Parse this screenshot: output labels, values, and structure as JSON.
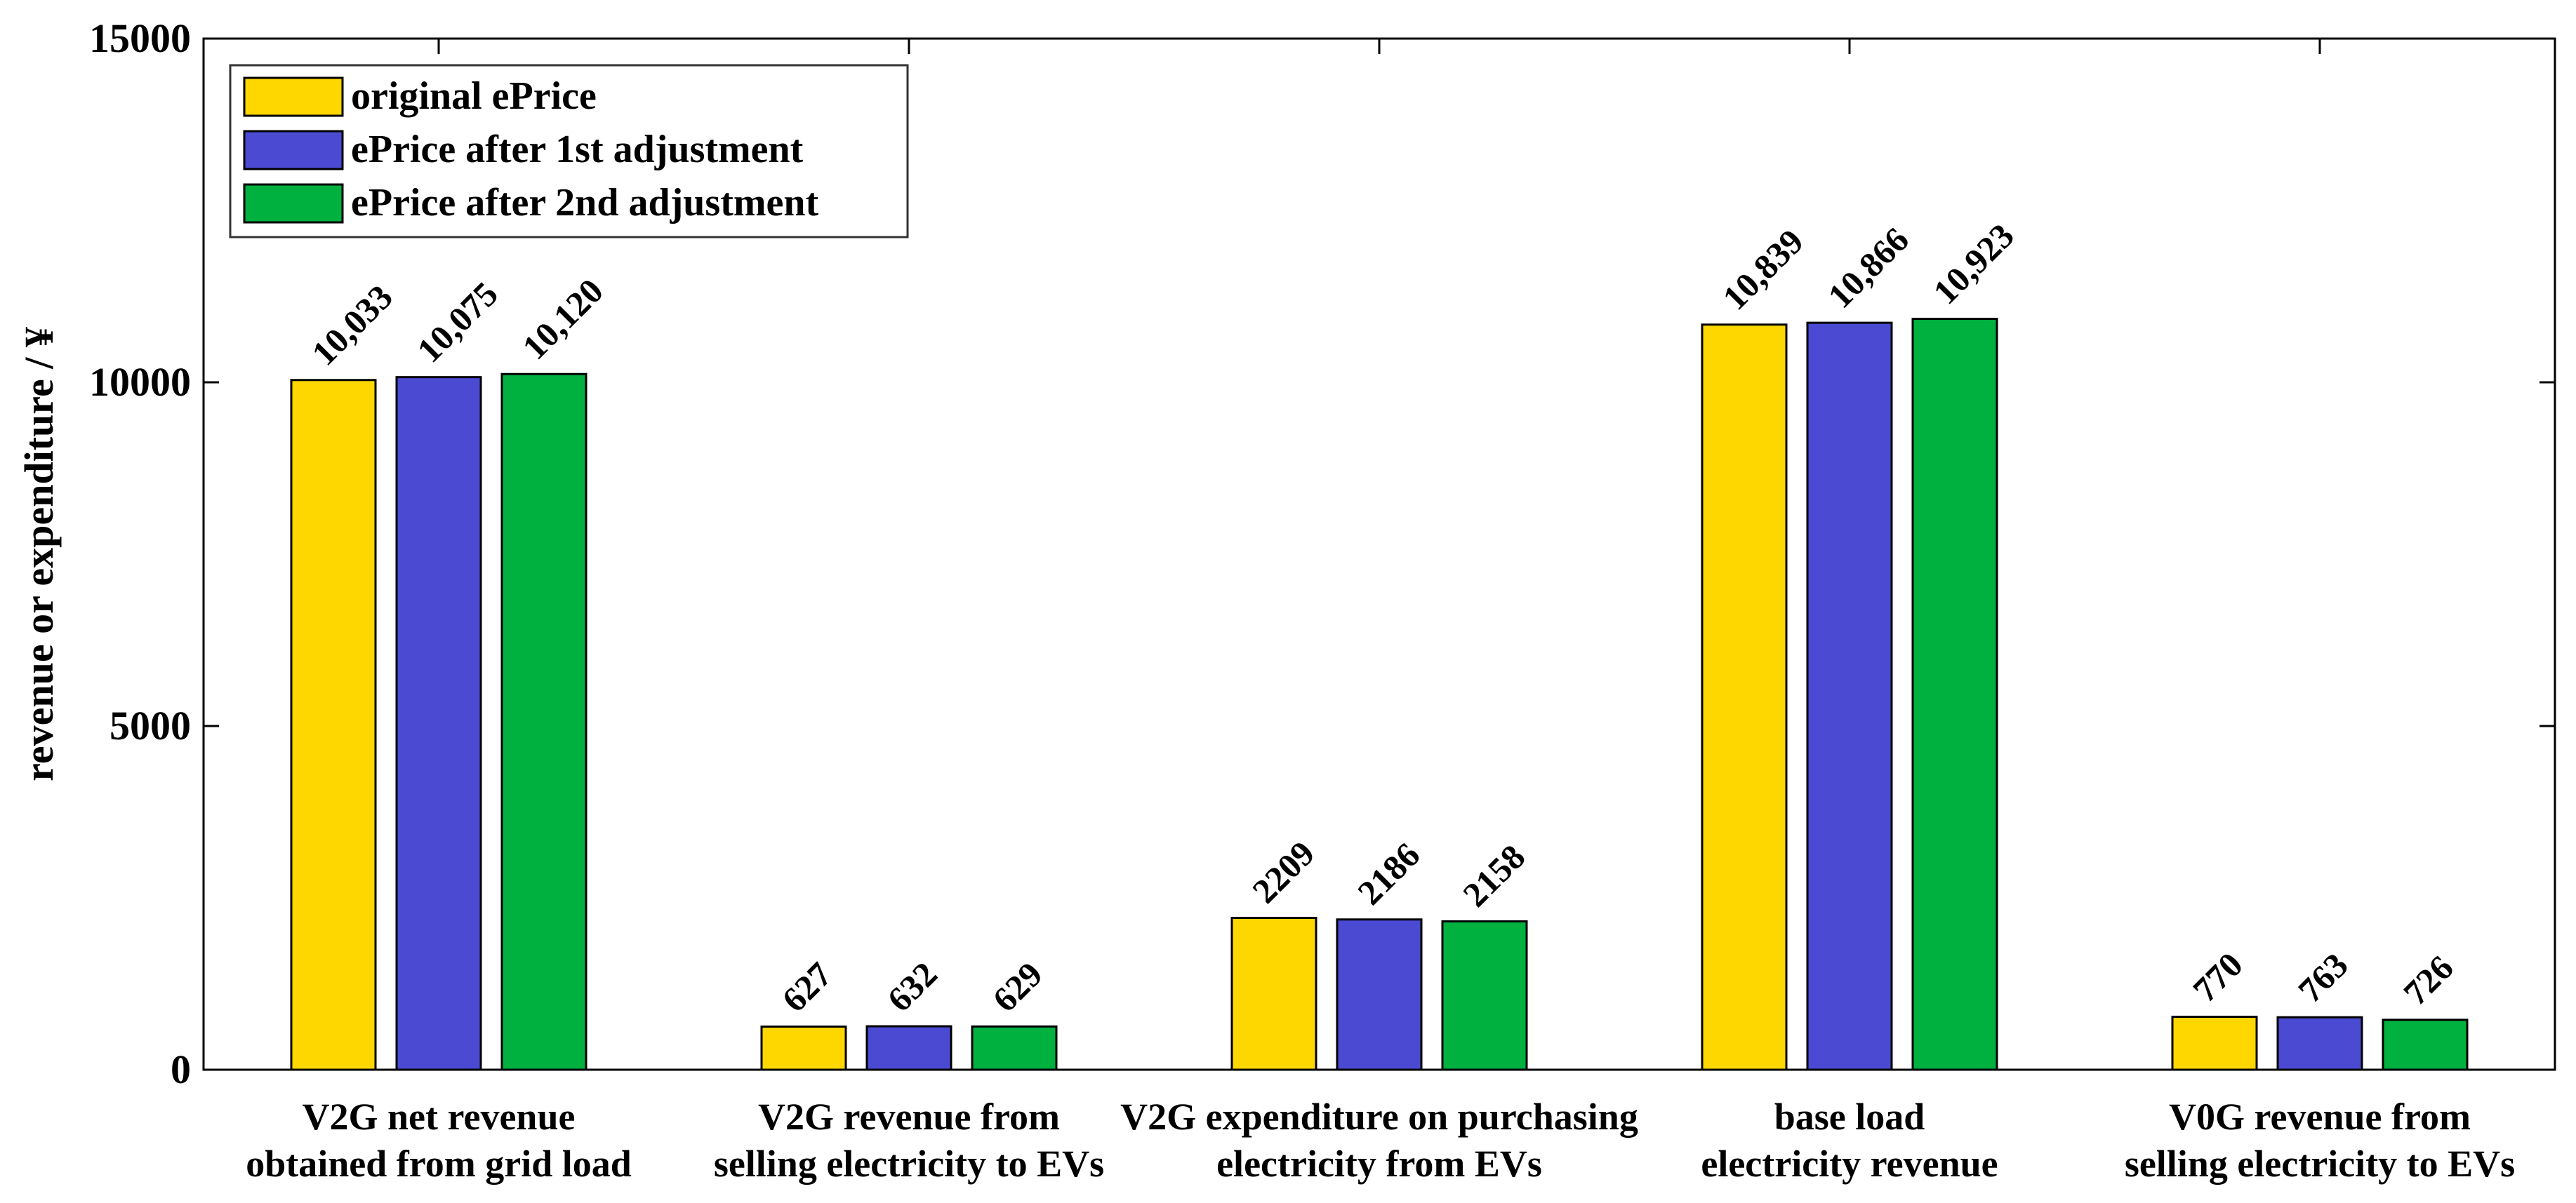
{
  "chart_data": {
    "type": "bar",
    "title": "",
    "xlabel": "",
    "ylabel": "revenue or expenditure / ¥",
    "ylim": [
      0,
      15000
    ],
    "yticks": [
      0,
      5000,
      10000,
      15000
    ],
    "ytick_labels": [
      "0",
      "5000",
      "10000",
      "15000"
    ],
    "grid": false,
    "legend_position": "top-left",
    "categories": [
      [
        "V2G net revenue",
        "obtained from grid load"
      ],
      [
        "V2G revenue from",
        "selling electricity to EVs"
      ],
      [
        "V2G expenditure on purchasing",
        "electricity from EVs"
      ],
      [
        "base load",
        "electricity revenue"
      ],
      [
        "V0G revenue from",
        "selling electricity to EVs"
      ]
    ],
    "series": [
      {
        "name": "original ePrice",
        "color": "#FFD700",
        "values": [
          10033,
          627,
          2209,
          10839,
          770
        ],
        "labels": [
          "10,033",
          "627",
          "2209",
          "10,839",
          "770"
        ]
      },
      {
        "name": "ePrice after 1st adjustment",
        "color": "#4A4AD3",
        "values": [
          10075,
          632,
          2186,
          10866,
          763
        ],
        "labels": [
          "10,075",
          "632",
          "2186",
          "10,866",
          "763"
        ]
      },
      {
        "name": "ePrice after 2nd adjustment",
        "color": "#00B140",
        "values": [
          10120,
          629,
          2158,
          10923,
          726
        ],
        "labels": [
          "10,120",
          "629",
          "2158",
          "10,923",
          "726"
        ]
      }
    ]
  }
}
